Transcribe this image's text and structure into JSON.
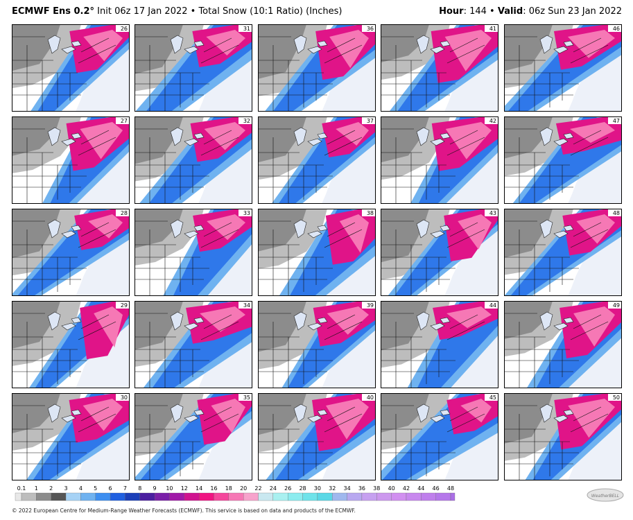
{
  "header": {
    "model": "ECMWF Ens 0.2°",
    "description": "Init 06z 17 Jan 2022 • Total Snow (10:1 Ratio) (Inches)",
    "hour_label": "Hour",
    "hour": ": 144 • ",
    "valid_label": "Valid",
    "valid": ": 06z Sun 23 Jan 2022"
  },
  "panels": [
    {
      "label": "26"
    },
    {
      "label": "27"
    },
    {
      "label": "28"
    },
    {
      "label": "29"
    },
    {
      "label": "30"
    },
    {
      "label": "31"
    },
    {
      "label": "32"
    },
    {
      "label": "33"
    },
    {
      "label": "34"
    },
    {
      "label": "35"
    },
    {
      "label": "36"
    },
    {
      "label": "37"
    },
    {
      "label": "38"
    },
    {
      "label": "39"
    },
    {
      "label": "40"
    },
    {
      "label": "41"
    },
    {
      "label": "42"
    },
    {
      "label": "43"
    },
    {
      "label": "44"
    },
    {
      "label": "45"
    },
    {
      "label": "46"
    },
    {
      "label": "47"
    },
    {
      "label": "48"
    },
    {
      "label": "49"
    },
    {
      "label": "50"
    }
  ],
  "legend": {
    "labels": [
      "0.1",
      "1",
      "2",
      "3",
      "4",
      "5",
      "6",
      "7",
      "8",
      "9",
      "10",
      "12",
      "14",
      "16",
      "18",
      "20",
      "22",
      "24",
      "26",
      "28",
      "30",
      "32",
      "34",
      "36",
      "38",
      "40",
      "42",
      "44",
      "46",
      "48"
    ]
  },
  "footer": "© 2022 European Centre for Medium-Range Weather Forecasts (ECMWF). This service is based on data and products of the ECMWF.",
  "logo": "WeatherBELL"
}
